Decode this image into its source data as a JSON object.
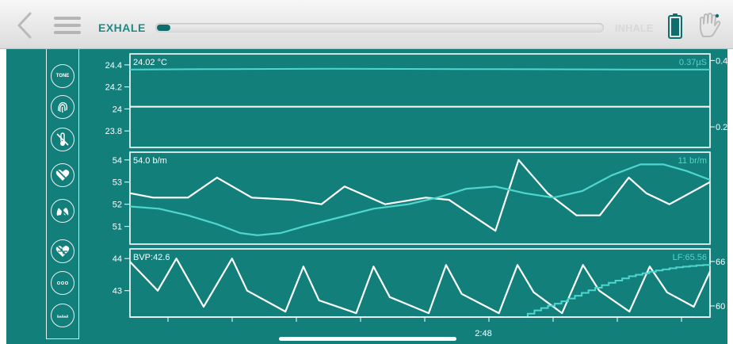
{
  "topbar": {
    "exhale_label": "EXHALE",
    "inhale_label": "INHALE",
    "breath_progress": 0.03,
    "icons": [
      "back-chevron-icon",
      "hamburger-menu-icon",
      "battery-icon",
      "hand-icon"
    ]
  },
  "sidebar": {
    "items": [
      {
        "name": "tone-button",
        "label": "TONE",
        "icon": "tone-icon"
      },
      {
        "name": "fingerprint-button",
        "label": "",
        "icon": "fingerprint-icon"
      },
      {
        "name": "temperature-toggle",
        "label": "",
        "icon": "thermometer-off-icon"
      },
      {
        "name": "heart-toggle",
        "label": "",
        "icon": "heart-off-icon"
      },
      {
        "name": "lungs-toggle",
        "label": "",
        "icon": "lungs-off-icon"
      },
      {
        "name": "hrv-toggle",
        "label": "",
        "icon": "heart-pulse-off-icon"
      },
      {
        "name": "more-button",
        "label": "",
        "icon": "dots-icon"
      },
      {
        "name": "scale-button",
        "label": "",
        "icon": "ruler-icon"
      }
    ]
  },
  "colors": {
    "panel": "#137f7b",
    "line_primary": "#ffffff",
    "line_secondary": "#4fd6cf"
  },
  "chart_data": [
    {
      "type": "line",
      "readout_left": "24.02 °C",
      "readout_right": "0.37µS",
      "y_left": {
        "range": [
          23.65,
          24.5
        ],
        "ticks": [
          "24.4",
          "24.2",
          "24",
          "23.8"
        ],
        "tick_values": [
          24.4,
          24.2,
          24.0,
          23.8
        ]
      },
      "y_right": {
        "range": [
          0.138,
          0.42
        ],
        "ticks": [
          "0.4",
          "0.2"
        ],
        "tick_values": [
          0.4,
          0.2
        ]
      },
      "series": [
        {
          "axis": "left",
          "x": [
            0,
            100
          ],
          "values": [
            24.02,
            24.02
          ]
        },
        {
          "axis": "right",
          "x": [
            0,
            15,
            35,
            60,
            85,
            100
          ],
          "values": [
            0.373,
            0.374,
            0.375,
            0.374,
            0.373,
            0.373
          ]
        }
      ]
    },
    {
      "type": "line",
      "readout_left": "54.0 b/m",
      "readout_right": "11 br/m",
      "y_left": {
        "range": [
          50.2,
          54.35
        ],
        "ticks": [
          "54",
          "53",
          "52",
          "51"
        ],
        "tick_values": [
          54,
          53,
          52,
          51
        ]
      },
      "series": [
        {
          "axis": "left",
          "x": [
            0,
            4,
            10,
            15,
            21,
            28,
            33,
            37,
            44,
            51,
            55,
            59,
            63,
            67,
            72,
            77,
            81,
            86,
            89,
            93,
            100
          ],
          "values": [
            52.5,
            52.3,
            52.3,
            53.2,
            52.3,
            52.2,
            52.0,
            52.8,
            52.0,
            52.3,
            52.2,
            51.5,
            50.8,
            54.0,
            52.5,
            51.5,
            51.5,
            53.2,
            52.5,
            52.0,
            53.0
          ]
        },
        {
          "axis": "left",
          "x": [
            0,
            5,
            10,
            15,
            19,
            22,
            26,
            30,
            36,
            42,
            48,
            53,
            58,
            63,
            68,
            73,
            78,
            83,
            88,
            92,
            96,
            100
          ],
          "values": [
            51.9,
            51.8,
            51.5,
            51.1,
            50.7,
            50.6,
            50.7,
            51.0,
            51.4,
            51.8,
            52.0,
            52.3,
            52.7,
            52.8,
            52.5,
            52.3,
            52.6,
            53.3,
            53.8,
            53.8,
            53.5,
            53.1
          ]
        }
      ]
    },
    {
      "type": "line",
      "readout_left": "BVP:42.6",
      "readout_right": "LF:65.56",
      "x_tick_label": "2:48",
      "y_left": {
        "range": [
          42.18,
          44.3
        ],
        "ticks": [
          "44",
          "43"
        ],
        "tick_values": [
          44,
          43
        ]
      },
      "y_right": {
        "range": [
          58.5,
          67.7
        ],
        "ticks": [
          "66",
          "60"
        ],
        "tick_values": [
          66,
          60
        ]
      },
      "series": [
        {
          "axis": "left",
          "x": [
            0.0,
            4.8,
            8.0,
            12.7,
            17.6,
            20.2,
            26.8,
            29.9,
            32.6,
            39.0,
            42.0,
            44.8,
            51.5,
            54.5,
            57.2,
            63.6,
            66.8,
            69.6,
            74.5,
            78.1,
            80.9,
            86.1,
            89.6,
            92.6,
            97.2,
            100.0
          ],
          "values": [
            43.9,
            43.0,
            44.0,
            42.5,
            44.0,
            43.0,
            42.35,
            43.75,
            42.7,
            42.3,
            43.75,
            42.8,
            42.3,
            43.8,
            42.9,
            42.3,
            43.8,
            42.95,
            42.3,
            43.8,
            43.0,
            42.35,
            43.75,
            42.95,
            42.5,
            43.6
          ]
        },
        {
          "axis": "right",
          "x": [
            67.4,
            70,
            74,
            78,
            82,
            86,
            90,
            94,
            98,
            100
          ],
          "values": [
            58.5,
            59.5,
            60.5,
            61.8,
            63.0,
            64.0,
            64.7,
            65.2,
            65.5,
            65.56
          ]
        }
      ]
    }
  ]
}
